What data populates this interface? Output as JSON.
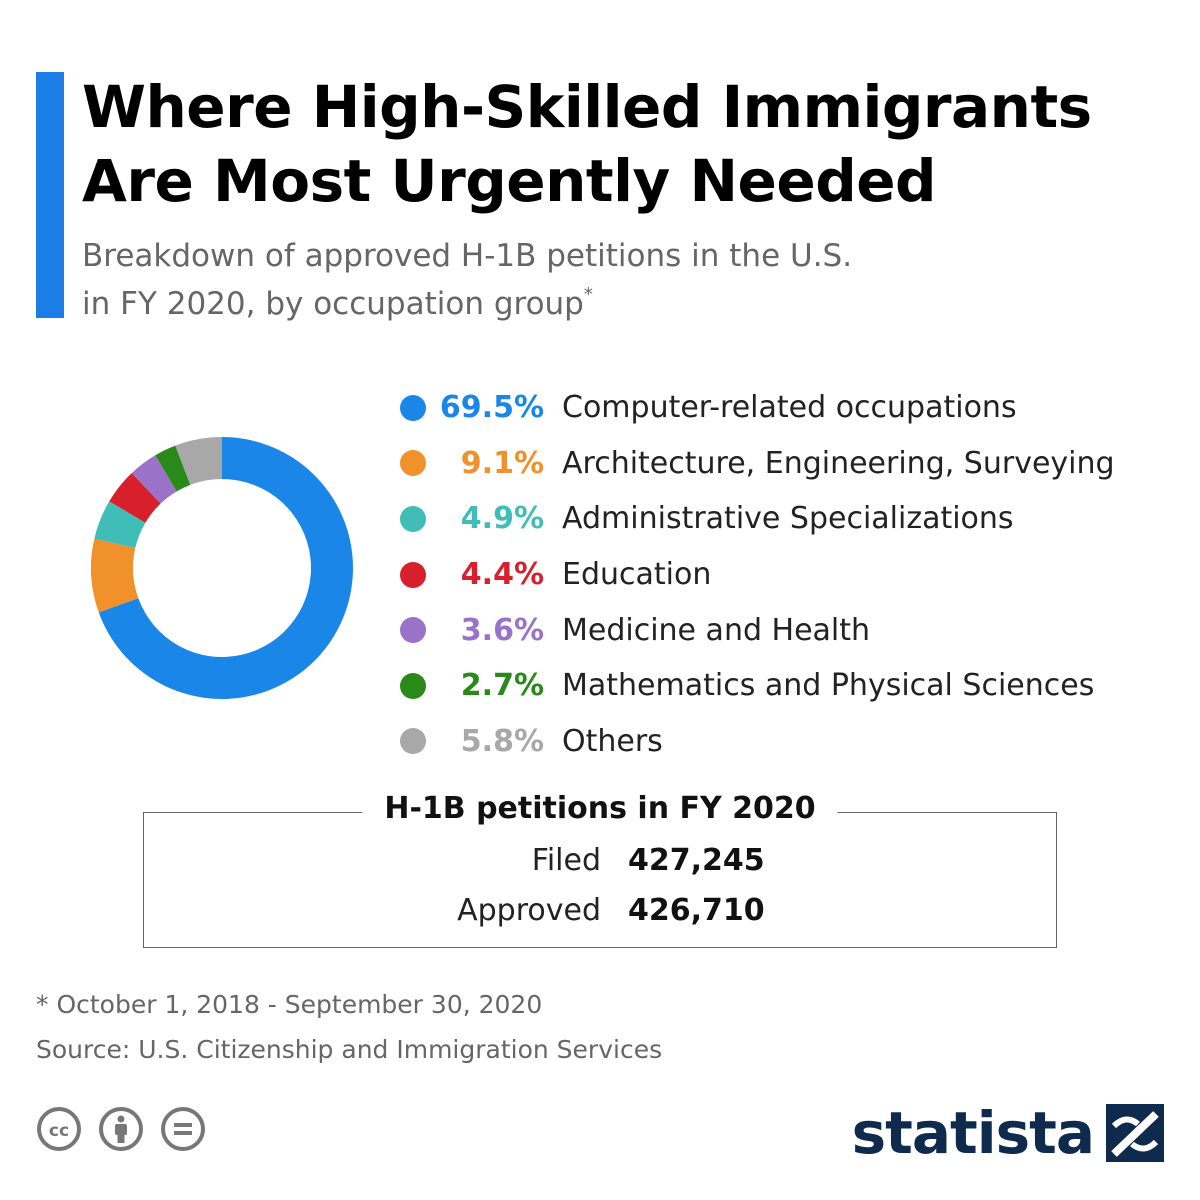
{
  "header": {
    "title_line1": "Where High-Skilled Immigrants",
    "title_line2": "Are Most Urgently Needed",
    "subtitle_line1": "Breakdown of approved H-1B petitions in the U.S.",
    "subtitle_line2": "in FY 2020, by occupation group",
    "subtitle_marker": "*",
    "accent_color": "#1a7ee6"
  },
  "chart_data": {
    "type": "pie",
    "donut": true,
    "legend_position": "right",
    "categories": [
      "Computer-related occupations",
      "Architecture, Engineering, Surveying",
      "Administrative Specializations",
      "Education",
      "Medicine and Health",
      "Mathematics and Physical Sciences",
      "Others"
    ],
    "values": [
      69.5,
      9.1,
      4.9,
      4.4,
      3.6,
      2.7,
      5.8
    ],
    "value_labels": [
      "69.5%",
      "9.1%",
      "4.9%",
      "4.4%",
      "3.6%",
      "2.7%",
      "5.8%"
    ],
    "colors": [
      "#1a87e8",
      "#f0912c",
      "#3fbdb6",
      "#d81f2c",
      "#9a72c8",
      "#2a8a19",
      "#a8a8a8"
    ]
  },
  "stats": {
    "title": "H-1B petitions in FY 2020",
    "filed_label": "Filed",
    "filed_value": "427,245",
    "approved_label": "Approved",
    "approved_value": "426,710"
  },
  "footer": {
    "footnote": "* October 1, 2018 - September 30, 2020",
    "source": "Source: U.S. Citizenship and Immigration Services",
    "license_icons": [
      "cc-icon",
      "attribution-icon",
      "no-derivatives-icon"
    ],
    "brand": "statista",
    "brand_color": "#0e2a4d"
  }
}
